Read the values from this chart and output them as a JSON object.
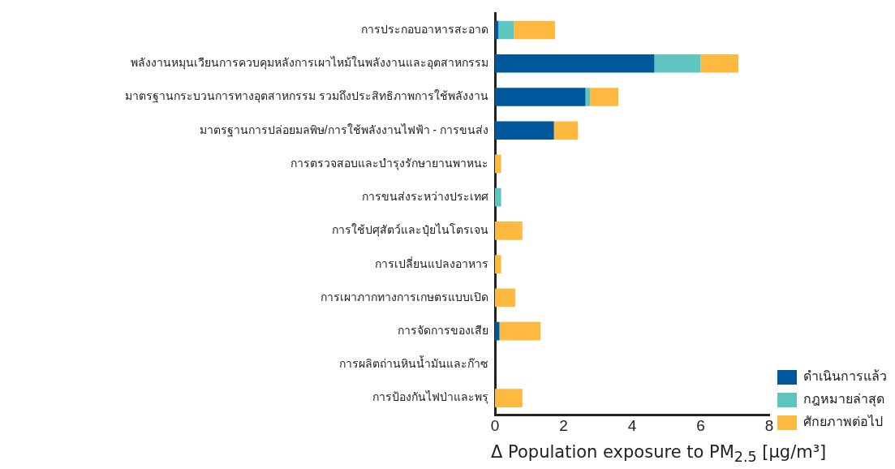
{
  "chart_data": {
    "type": "bar",
    "orientation": "horizontal",
    "stacked": true,
    "categories": [
      "การประกอบอาหารสะอาด",
      "พลังงานหมุนเวียนการควบคุมหลังการเผาไหม้ในพลังงานและอุตสาหกรรม",
      "มาตรฐานกระบวนการทางอุตสาหกรรม รวมถึงประสิทธิภาพการใช้พลังงาน",
      "มาตรฐานการปล่อยมลพิษ/การใช้พลังงานไฟฟ้า - การขนส่ง",
      "การตรวจสอบและบำรุงรักษายานพาหนะ",
      "การขนส่งระหว่างประเทศ",
      "การใช้ปศุสัตว์และปุ๋ยไนโตรเจน",
      "การเปลี่ยนแปลงอาหาร",
      "การเผาภากทางการเกษตรแบบเปิด",
      "การจัดการของเสีย",
      "การผลิตถ่านหินน้ำมันและก๊าซ",
      "การป้องกันไฟป่าและพรุ"
    ],
    "series": [
      {
        "name": "ดำเนินการแล้ว",
        "color": "#00579b",
        "values": [
          0.1,
          4.65,
          2.64,
          1.72,
          0,
          0,
          0,
          0,
          0,
          0.13,
          0,
          0
        ]
      },
      {
        "name": "กฎหมายล่าสุด",
        "color": "#5ec5c0",
        "values": [
          0.45,
          1.35,
          0.13,
          0,
          0,
          0.18,
          0,
          0,
          0,
          0,
          0,
          0
        ]
      },
      {
        "name": "ศักยภาพต่อไป",
        "color": "#fdb940",
        "values": [
          1.2,
          1.1,
          0.83,
          0.7,
          0.18,
          0,
          0.8,
          0.18,
          0.59,
          1.2,
          0,
          0.8
        ]
      }
    ],
    "xlim": [
      0,
      8
    ],
    "xticks": [
      0,
      2,
      4,
      6,
      8
    ],
    "xlabel": "Δ Population exposure to PM$_{2.5}$ [μg/m³]",
    "grid": false,
    "legend": "bottom right"
  }
}
